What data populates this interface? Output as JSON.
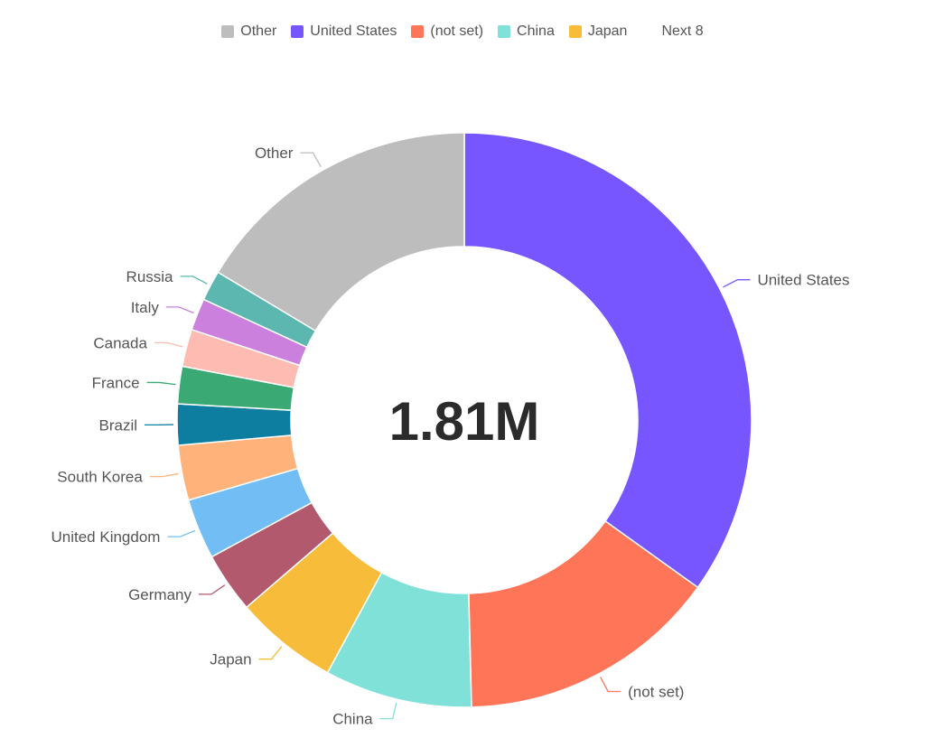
{
  "legend": {
    "items": [
      {
        "label": "Other",
        "color": "#bdbdbd"
      },
      {
        "label": "United States",
        "color": "#7856ff"
      },
      {
        "label": "(not set)",
        "color": "#ff7557"
      },
      {
        "label": "China",
        "color": "#80e1d9"
      },
      {
        "label": "Japan",
        "color": "#f8bc3b"
      }
    ],
    "more_label": "Next 8"
  },
  "chart_data": {
    "type": "pie",
    "center_label": "1.81M",
    "start_angle_deg": 0,
    "slices": [
      {
        "label": "United States",
        "value": 34.9,
        "color": "#7856ff"
      },
      {
        "label": "(not set)",
        "value": 14.7,
        "color": "#ff7557"
      },
      {
        "label": "China",
        "value": 8.3,
        "color": "#80e1d9"
      },
      {
        "label": "Japan",
        "value": 5.8,
        "color": "#f8bc3b"
      },
      {
        "label": "Germany",
        "value": 3.4,
        "color": "#b2596e"
      },
      {
        "label": "United Kingdom",
        "value": 3.4,
        "color": "#72bef4"
      },
      {
        "label": "South Korea",
        "value": 3.1,
        "color": "#ffb27a"
      },
      {
        "label": "Brazil",
        "value": 2.3,
        "color": "#0d7ea0"
      },
      {
        "label": "France",
        "value": 2.1,
        "color": "#3ba974"
      },
      {
        "label": "Canada",
        "value": 2.1,
        "color": "#febbb2"
      },
      {
        "label": "Italy",
        "value": 1.8,
        "color": "#ca80dc"
      },
      {
        "label": "Russia",
        "value": 1.7,
        "color": "#5bb7af"
      },
      {
        "label": "Other",
        "value": 16.4,
        "color": "#bdbdbd"
      }
    ]
  }
}
